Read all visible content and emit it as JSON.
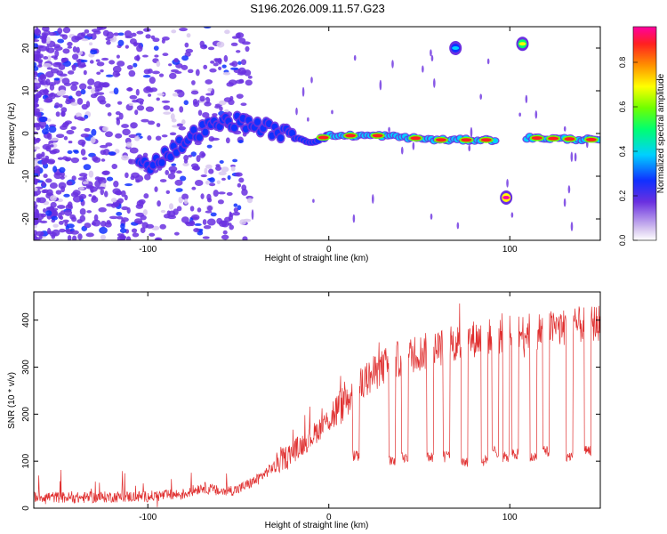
{
  "chart_data": [
    {
      "type": "heatmap",
      "title": "S196.2026.009.11.57.G23",
      "xlabel": "Height of straight line (km)",
      "ylabel": "Frequency (Hz)",
      "xlim": [
        -163,
        150
      ],
      "ylim": [
        -25,
        25
      ],
      "xticks": [
        -100,
        0,
        100
      ],
      "yticks": [
        -20,
        -10,
        0,
        10,
        20
      ],
      "colorbar": {
        "label": "Normalized spectral amplitude",
        "range": [
          0,
          0.96
        ],
        "ticks": [
          "0.0",
          "0.2",
          "0.4",
          "0.6",
          "0.8"
        ],
        "tick_values": [
          0,
          0.2,
          0.4,
          0.6,
          0.8
        ]
      },
      "main_track": [
        {
          "x": -100,
          "y": -7.5
        },
        {
          "x": -90,
          "y": -5
        },
        {
          "x": -80,
          "y": -2
        },
        {
          "x": -70,
          "y": 1
        },
        {
          "x": -55,
          "y": 3
        },
        {
          "x": -40,
          "y": 2
        },
        {
          "x": -25,
          "y": 0
        },
        {
          "x": -10,
          "y": -2
        },
        {
          "x": 0,
          "y": -0.5
        },
        {
          "x": 30,
          "y": -0.5
        },
        {
          "x": 60,
          "y": -1.5
        },
        {
          "x": 92,
          "y": -1.5
        },
        {
          "x": 110,
          "y": -1
        },
        {
          "x": 150,
          "y": -1.5
        }
      ],
      "side_features": [
        {
          "x": 70,
          "y": 20,
          "amplitude": 0.35
        },
        {
          "x": 107,
          "y": 21,
          "amplitude": 0.6
        },
        {
          "x": 98,
          "y": -15,
          "amplitude": 0.9
        }
      ]
    },
    {
      "type": "line",
      "xlabel": "Height of straight line (km)",
      "ylabel": "SNR (10 * v/v)",
      "xlim": [
        -163,
        150
      ],
      "ylim": [
        0,
        460
      ],
      "xticks": [
        -100,
        0,
        100
      ],
      "yticks": [
        0,
        100,
        200,
        300,
        400
      ],
      "series": [
        {
          "name": "SNR",
          "color": "#e03030",
          "x": [
            -163,
            -140,
            -120,
            -100,
            -80,
            -70,
            -60,
            -50,
            -40,
            -30,
            -20,
            -10,
            0,
            10,
            20,
            30,
            40,
            50,
            60,
            70,
            80,
            90,
            100,
            110,
            120,
            130,
            140,
            150
          ],
          "values": [
            25,
            22,
            24,
            25,
            30,
            45,
            35,
            40,
            60,
            90,
            120,
            150,
            190,
            230,
            270,
            300,
            320,
            330,
            340,
            350,
            360,
            365,
            370,
            375,
            380,
            385,
            390,
            395
          ],
          "dips": [
            {
              "x": 15,
              "value": 110
            },
            {
              "x": 35,
              "value": 100
            },
            {
              "x": 42,
              "value": 110
            },
            {
              "x": 56,
              "value": 110
            },
            {
              "x": 65,
              "value": 110
            },
            {
              "x": 75,
              "value": 100
            },
            {
              "x": 86,
              "value": 100
            },
            {
              "x": 92,
              "value": 120
            },
            {
              "x": 98,
              "value": 110
            },
            {
              "x": 103,
              "value": 115
            },
            {
              "x": 113,
              "value": 110
            },
            {
              "x": 120,
              "value": 120
            },
            {
              "x": 133,
              "value": 110
            },
            {
              "x": 143,
              "value": 120
            }
          ]
        }
      ]
    }
  ]
}
